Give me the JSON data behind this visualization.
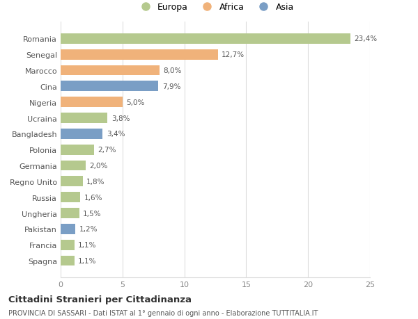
{
  "countries": [
    "Romania",
    "Senegal",
    "Marocco",
    "Cina",
    "Nigeria",
    "Ucraina",
    "Bangladesh",
    "Polonia",
    "Germania",
    "Regno Unito",
    "Russia",
    "Ungheria",
    "Pakistan",
    "Francia",
    "Spagna"
  ],
  "values": [
    23.4,
    12.7,
    8.0,
    7.9,
    5.0,
    3.8,
    3.4,
    2.7,
    2.0,
    1.8,
    1.6,
    1.5,
    1.2,
    1.1,
    1.1
  ],
  "labels": [
    "23,4%",
    "12,7%",
    "8,0%",
    "7,9%",
    "5,0%",
    "3,8%",
    "3,4%",
    "2,7%",
    "2,0%",
    "1,8%",
    "1,6%",
    "1,5%",
    "1,2%",
    "1,1%",
    "1,1%"
  ],
  "continents": [
    "Europa",
    "Africa",
    "Africa",
    "Asia",
    "Africa",
    "Europa",
    "Asia",
    "Europa",
    "Europa",
    "Europa",
    "Europa",
    "Europa",
    "Asia",
    "Europa",
    "Europa"
  ],
  "colors": {
    "Europa": "#b5c98e",
    "Africa": "#f0b27a",
    "Asia": "#7a9ec5"
  },
  "xlim": [
    0,
    25
  ],
  "xticks": [
    0,
    5,
    10,
    15,
    20,
    25
  ],
  "title": "Cittadini Stranieri per Cittadinanza",
  "subtitle": "PROVINCIA DI SASSARI - Dati ISTAT al 1° gennaio di ogni anno - Elaborazione TUTTITALIA.IT",
  "background_color": "#ffffff",
  "grid_color": "#dddddd"
}
